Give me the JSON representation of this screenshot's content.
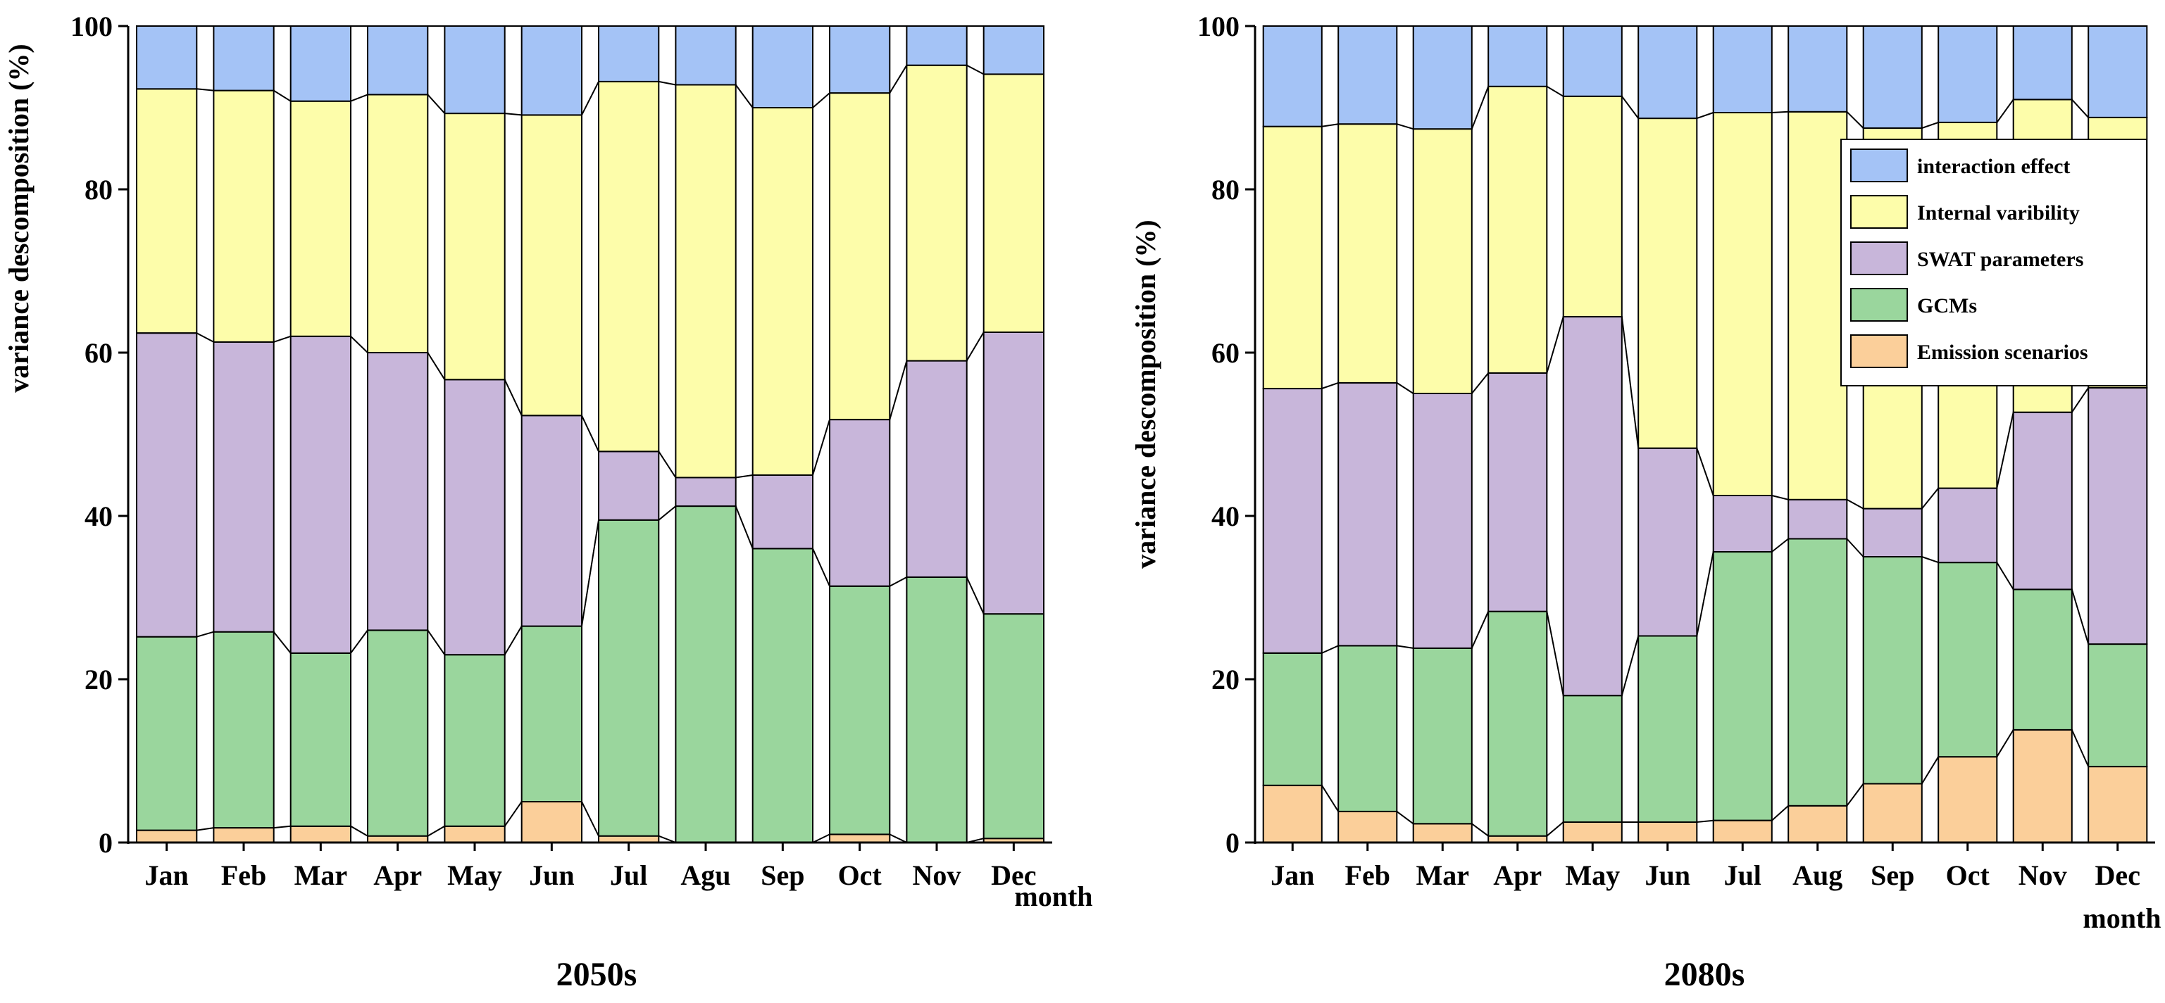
{
  "colors": {
    "interaction": "#a4c3f6",
    "internal": "#fdfdaa",
    "swat": "#c8b6da",
    "gcm": "#9ad69d",
    "emission": "#fbcf9a",
    "axis": "#000000"
  },
  "legend": {
    "items": [
      {
        "key": "interaction",
        "label": "interaction effect"
      },
      {
        "key": "internal",
        "label": "Internal varibility"
      },
      {
        "key": "swat",
        "label": "SWAT parameters"
      },
      {
        "key": "gcm",
        "label": "GCMs"
      },
      {
        "key": "emission",
        "label": "Emission scenarios"
      }
    ]
  },
  "chart_data": [
    {
      "type": "bar",
      "stacked": true,
      "title": "2050s",
      "xlabel": "month",
      "ylabel": "variance descomposition (%)",
      "ylim": [
        0,
        100
      ],
      "yticks": [
        0,
        20,
        40,
        60,
        80,
        100
      ],
      "categories": [
        "Jan",
        "Feb",
        "Mar",
        "Apr",
        "May",
        "Jun",
        "Jul",
        "Agu",
        "Sep",
        "Oct",
        "Nov",
        "Dec"
      ],
      "series": [
        {
          "key": "emission",
          "name": "Emission scenarios",
          "values": [
            1.5,
            1.8,
            2.0,
            0.8,
            2.0,
            5.0,
            0.8,
            0.0,
            0.0,
            1.0,
            0.0,
            0.5
          ]
        },
        {
          "key": "gcm",
          "name": "GCMs",
          "values": [
            23.7,
            24.0,
            21.2,
            25.2,
            21.0,
            21.5,
            38.7,
            41.2,
            36.0,
            30.4,
            32.5,
            27.5
          ]
        },
        {
          "key": "swat",
          "name": "SWAT parameters",
          "values": [
            37.2,
            35.5,
            38.8,
            34.0,
            33.7,
            25.8,
            8.4,
            3.5,
            9.0,
            20.4,
            26.5,
            34.5
          ]
        },
        {
          "key": "internal",
          "name": "Internal varibility",
          "values": [
            29.9,
            30.8,
            28.8,
            31.6,
            32.6,
            36.8,
            45.3,
            48.1,
            45.0,
            40.0,
            36.2,
            31.6
          ]
        },
        {
          "key": "interaction",
          "name": "interaction effect",
          "values": [
            7.7,
            7.9,
            9.2,
            8.4,
            10.7,
            10.9,
            6.8,
            7.2,
            10.0,
            8.2,
            4.8,
            5.9
          ]
        }
      ]
    },
    {
      "type": "bar",
      "stacked": true,
      "title": "2080s",
      "xlabel": "month",
      "ylabel": "variance descomposition (%)",
      "ylim": [
        0,
        100
      ],
      "yticks": [
        0,
        20,
        40,
        60,
        80,
        100
      ],
      "categories": [
        "Jan",
        "Feb",
        "Mar",
        "Apr",
        "May",
        "Jun",
        "Jul",
        "Aug",
        "Sep",
        "Oct",
        "Nov",
        "Dec"
      ],
      "series": [
        {
          "key": "emission",
          "name": "Emission scenarios",
          "values": [
            7.0,
            3.8,
            2.3,
            0.8,
            2.5,
            2.5,
            2.7,
            4.5,
            7.2,
            10.5,
            13.8,
            9.3
          ]
        },
        {
          "key": "gcm",
          "name": "GCMs",
          "values": [
            16.2,
            20.3,
            21.5,
            27.5,
            15.5,
            22.8,
            32.9,
            32.7,
            27.8,
            23.8,
            17.2,
            15.0
          ]
        },
        {
          "key": "swat",
          "name": "SWAT parameters",
          "values": [
            32.4,
            32.2,
            31.2,
            29.2,
            46.4,
            23.0,
            6.9,
            4.8,
            5.9,
            9.1,
            21.7,
            31.4
          ]
        },
        {
          "key": "internal",
          "name": "Internal varibility",
          "values": [
            32.1,
            31.7,
            32.4,
            35.1,
            27.0,
            40.4,
            46.9,
            47.5,
            46.6,
            44.8,
            38.3,
            33.1
          ]
        },
        {
          "key": "interaction",
          "name": "interaction effect",
          "values": [
            12.3,
            12.0,
            12.6,
            7.4,
            8.6,
            11.3,
            10.6,
            10.5,
            12.5,
            11.8,
            9.0,
            11.2
          ]
        }
      ]
    }
  ]
}
